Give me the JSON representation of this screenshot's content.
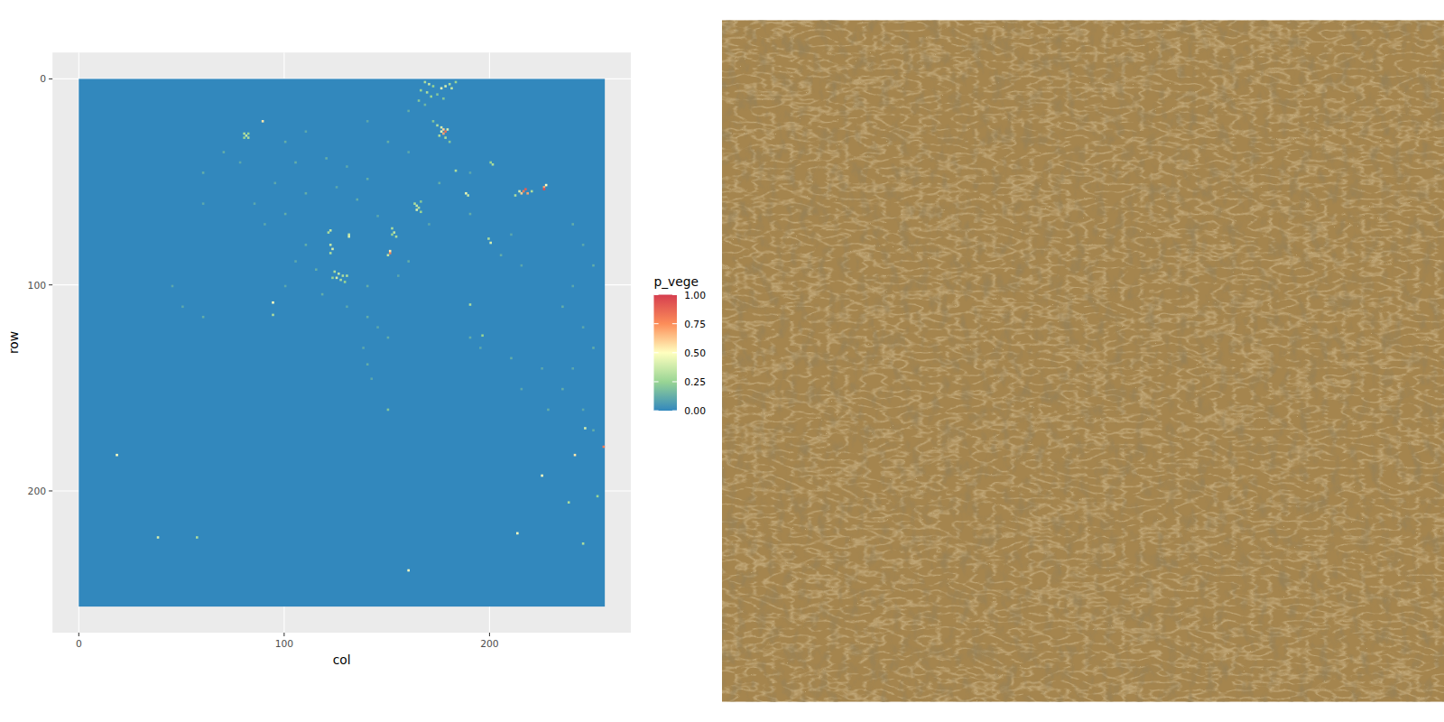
{
  "chart_data": {
    "type": "heatmap",
    "x_label": "col",
    "y_label": "row",
    "xlim": [
      -12.8,
      268.8
    ],
    "ylim": [
      268.8,
      -12.8
    ],
    "xticks": [
      0,
      100,
      200
    ],
    "yticks": [
      0,
      100,
      200
    ],
    "grid": true,
    "legend_title": "p_vege",
    "color_range": [
      0,
      1
    ],
    "color_ticks": [
      {
        "value": 0,
        "label": "0.00"
      },
      {
        "value": 0.25,
        "label": "0.25"
      },
      {
        "value": 0.5,
        "label": "0.50"
      },
      {
        "value": 0.75,
        "label": "0.75"
      },
      {
        "value": 1,
        "label": "1.00"
      }
    ],
    "rows": 256,
    "cols": 256,
    "base_value": 0,
    "cells": [
      [
        1,
        168,
        0.3
      ],
      [
        2,
        170,
        0.35
      ],
      [
        3,
        172,
        0.25
      ],
      [
        4,
        176,
        0.45
      ],
      [
        3,
        178,
        0.4
      ],
      [
        2,
        180,
        0.3
      ],
      [
        5,
        166,
        0.25
      ],
      [
        6,
        169,
        0.3
      ],
      [
        7,
        174,
        0.2
      ],
      [
        8,
        171,
        0.25
      ],
      [
        10,
        165,
        0.2
      ],
      [
        4,
        181,
        0.35
      ],
      [
        1,
        183,
        0.25
      ],
      [
        9,
        177,
        0.2
      ],
      [
        12,
        168,
        0.15
      ],
      [
        22,
        174,
        0.3
      ],
      [
        23,
        176,
        0.4
      ],
      [
        24,
        177,
        0.6
      ],
      [
        25,
        178,
        0.85
      ],
      [
        26,
        177,
        0.7
      ],
      [
        25,
        176,
        0.45
      ],
      [
        24,
        179,
        0.4
      ],
      [
        27,
        175,
        0.3
      ],
      [
        28,
        178,
        0.3
      ],
      [
        20,
        172,
        0.2
      ],
      [
        30,
        180,
        0.2
      ],
      [
        26,
        80,
        0.3
      ],
      [
        27,
        81,
        0.35
      ],
      [
        28,
        82,
        0.3
      ],
      [
        26,
        82,
        0.25
      ],
      [
        28,
        80,
        0.25
      ],
      [
        20,
        89,
        0.55
      ],
      [
        54,
        214,
        0.4
      ],
      [
        55,
        215,
        0.6
      ],
      [
        54,
        216,
        0.8
      ],
      [
        53,
        217,
        0.9
      ],
      [
        55,
        218,
        0.7
      ],
      [
        52,
        226,
        0.7
      ],
      [
        53,
        226,
        0.95
      ],
      [
        51,
        227,
        0.5
      ],
      [
        56,
        212,
        0.3
      ],
      [
        54,
        220,
        0.3
      ],
      [
        55,
        188,
        0.45
      ],
      [
        56,
        189,
        0.35
      ],
      [
        44,
        183,
        0.3
      ],
      [
        40,
        200,
        0.25
      ],
      [
        41,
        201,
        0.3
      ],
      [
        60,
        163,
        0.3
      ],
      [
        61,
        164,
        0.35
      ],
      [
        62,
        165,
        0.3
      ],
      [
        63,
        164,
        0.4
      ],
      [
        64,
        166,
        0.25
      ],
      [
        59,
        166,
        0.2
      ],
      [
        72,
        152,
        0.3
      ],
      [
        74,
        153,
        0.35
      ],
      [
        76,
        154,
        0.3
      ],
      [
        75,
        152,
        0.25
      ],
      [
        84,
        151,
        0.8
      ],
      [
        83,
        151,
        0.55
      ],
      [
        85,
        150,
        0.35
      ],
      [
        73,
        122,
        0.35
      ],
      [
        74,
        121,
        0.3
      ],
      [
        75,
        131,
        0.35
      ],
      [
        76,
        131,
        0.4
      ],
      [
        80,
        122,
        0.35
      ],
      [
        82,
        123,
        0.4
      ],
      [
        84,
        122,
        0.3
      ],
      [
        93,
        124,
        0.3
      ],
      [
        94,
        126,
        0.35
      ],
      [
        95,
        128,
        0.3
      ],
      [
        96,
        125,
        0.4
      ],
      [
        97,
        127,
        0.3
      ],
      [
        95,
        130,
        0.3
      ],
      [
        98,
        129,
        0.25
      ],
      [
        96,
        123,
        0.25
      ],
      [
        108,
        94,
        0.5
      ],
      [
        79,
        200,
        0.4
      ],
      [
        77,
        199,
        0.3
      ],
      [
        182,
        18,
        0.5
      ],
      [
        222,
        38,
        0.4
      ],
      [
        222,
        57,
        0.3
      ],
      [
        238,
        160,
        0.5
      ],
      [
        220,
        213,
        0.5
      ],
      [
        192,
        225,
        0.5
      ],
      [
        182,
        241,
        0.55
      ],
      [
        178,
        255,
        0.8
      ],
      [
        169,
        246,
        0.4
      ],
      [
        205,
        238,
        0.3
      ],
      [
        225,
        245,
        0.3
      ],
      [
        202,
        252,
        0.25
      ],
      [
        160,
        150,
        0.2
      ],
      [
        109,
        190,
        0.3
      ],
      [
        124,
        196,
        0.25
      ],
      [
        114,
        94,
        0.3
      ],
      [
        35,
        70,
        0.12
      ],
      [
        40,
        78,
        0.1
      ],
      [
        45,
        60,
        0.12
      ],
      [
        50,
        95,
        0.1
      ],
      [
        55,
        110,
        0.12
      ],
      [
        60,
        85,
        0.1
      ],
      [
        65,
        100,
        0.12
      ],
      [
        70,
        90,
        0.1
      ],
      [
        38,
        120,
        0.12
      ],
      [
        42,
        130,
        0.1
      ],
      [
        48,
        140,
        0.12
      ],
      [
        52,
        125,
        0.1
      ],
      [
        58,
        135,
        0.12
      ],
      [
        66,
        145,
        0.1
      ],
      [
        80,
        110,
        0.12
      ],
      [
        88,
        105,
        0.1
      ],
      [
        92,
        115,
        0.12
      ],
      [
        100,
        100,
        0.1
      ],
      [
        104,
        118,
        0.12
      ],
      [
        110,
        130,
        0.1
      ],
      [
        115,
        140,
        0.12
      ],
      [
        120,
        145,
        0.1
      ],
      [
        125,
        150,
        0.12
      ],
      [
        130,
        138,
        0.1
      ],
      [
        138,
        140,
        0.12
      ],
      [
        145,
        142,
        0.1
      ],
      [
        100,
        140,
        0.12
      ],
      [
        95,
        155,
        0.1
      ],
      [
        88,
        160,
        0.12
      ],
      [
        70,
        170,
        0.1
      ],
      [
        50,
        175,
        0.12
      ],
      [
        35,
        160,
        0.1
      ],
      [
        30,
        150,
        0.12
      ],
      [
        20,
        140,
        0.1
      ],
      [
        15,
        160,
        0.12
      ],
      [
        45,
        190,
        0.1
      ],
      [
        65,
        190,
        0.12
      ],
      [
        75,
        210,
        0.1
      ],
      [
        85,
        205,
        0.12
      ],
      [
        90,
        215,
        0.1
      ],
      [
        70,
        240,
        0.12
      ],
      [
        80,
        245,
        0.1
      ],
      [
        90,
        250,
        0.12
      ],
      [
        100,
        240,
        0.1
      ],
      [
        110,
        235,
        0.12
      ],
      [
        120,
        245,
        0.1
      ],
      [
        130,
        250,
        0.12
      ],
      [
        140,
        240,
        0.1
      ],
      [
        150,
        235,
        0.12
      ],
      [
        160,
        245,
        0.1
      ],
      [
        170,
        250,
        0.12
      ],
      [
        140,
        225,
        0.1
      ],
      [
        135,
        210,
        0.12
      ],
      [
        130,
        195,
        0.1
      ],
      [
        125,
        190,
        0.12
      ],
      [
        150,
        215,
        0.1
      ],
      [
        160,
        228,
        0.12
      ],
      [
        110,
        50,
        0.1
      ],
      [
        115,
        60,
        0.12
      ],
      [
        100,
        45,
        0.1
      ],
      [
        30,
        100,
        0.12
      ],
      [
        25,
        110,
        0.1
      ],
      [
        40,
        105,
        0.12
      ],
      [
        60,
        60,
        0.1
      ]
    ]
  }
}
